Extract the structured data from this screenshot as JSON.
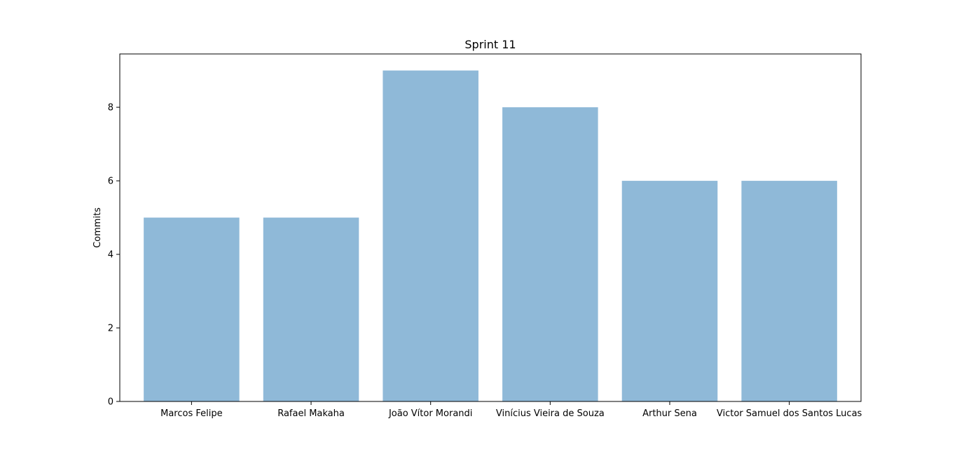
{
  "chart_data": {
    "type": "bar",
    "title": "Sprint 11",
    "xlabel": "",
    "ylabel": "Commits",
    "categories": [
      "Marcos Felipe",
      "Rafael Makaha",
      "João Vítor Morandi",
      "Vinícius Vieira de Souza",
      "Arthur Sena",
      "Victor Samuel dos Santos Lucas"
    ],
    "values": [
      5,
      5,
      9,
      8,
      6,
      6
    ],
    "ylim": [
      0,
      9.45
    ],
    "yticks": [
      0,
      2,
      4,
      6,
      8
    ],
    "grid": false,
    "legend": "none",
    "bar_color": "#8fb9d8"
  }
}
